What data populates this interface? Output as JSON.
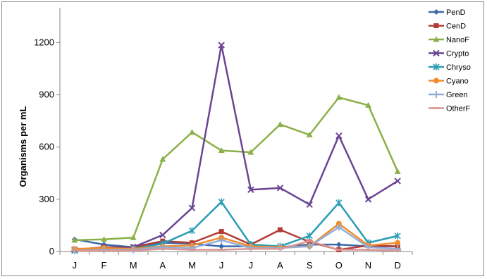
{
  "chart_data": {
    "type": "line",
    "title": "",
    "xlabel": "",
    "ylabel": "Organisms per mL",
    "categories": [
      "J",
      "F",
      "M",
      "A",
      "M",
      "J",
      "J",
      "A",
      "S",
      "O",
      "N",
      "D"
    ],
    "yticks": [
      0,
      300,
      600,
      900,
      1200
    ],
    "ylim": [
      0,
      1400
    ],
    "grid": false,
    "legend_position": "right",
    "series": [
      {
        "name": "PenD",
        "color": "#3b6aa8",
        "marker": "diamond",
        "values": [
          70,
          40,
          25,
          50,
          45,
          30,
          30,
          25,
          40,
          40,
          30,
          30
        ]
      },
      {
        "name": "CenD",
        "color": "#b23b37",
        "marker": "square",
        "values": [
          10,
          25,
          25,
          60,
          50,
          115,
          40,
          125,
          55,
          10,
          35,
          30
        ]
      },
      {
        "name": "NanoF",
        "color": "#8cb048",
        "marker": "triangle",
        "values": [
          65,
          70,
          80,
          530,
          685,
          580,
          570,
          730,
          670,
          885,
          840,
          460
        ]
      },
      {
        "name": "Crypto",
        "color": "#6b4593",
        "marker": "x",
        "values": [
          10,
          20,
          25,
          95,
          250,
          1185,
          355,
          365,
          270,
          665,
          300,
          405
        ]
      },
      {
        "name": "Chryso",
        "color": "#2a9db3",
        "marker": "star",
        "values": [
          5,
          15,
          15,
          45,
          120,
          285,
          40,
          30,
          90,
          280,
          50,
          90
        ]
      },
      {
        "name": "Cyano",
        "color": "#f08c2e",
        "marker": "circle",
        "values": [
          15,
          20,
          15,
          30,
          35,
          80,
          30,
          25,
          30,
          160,
          35,
          50
        ]
      },
      {
        "name": "Green",
        "color": "#93aed6",
        "marker": "plus",
        "values": [
          5,
          10,
          10,
          25,
          20,
          65,
          20,
          20,
          30,
          140,
          25,
          15
        ]
      },
      {
        "name": "OtherF",
        "color": "#d89591",
        "marker": "dash",
        "values": [
          5,
          5,
          5,
          15,
          10,
          10,
          15,
          15,
          60,
          10,
          10,
          5
        ]
      }
    ]
  }
}
